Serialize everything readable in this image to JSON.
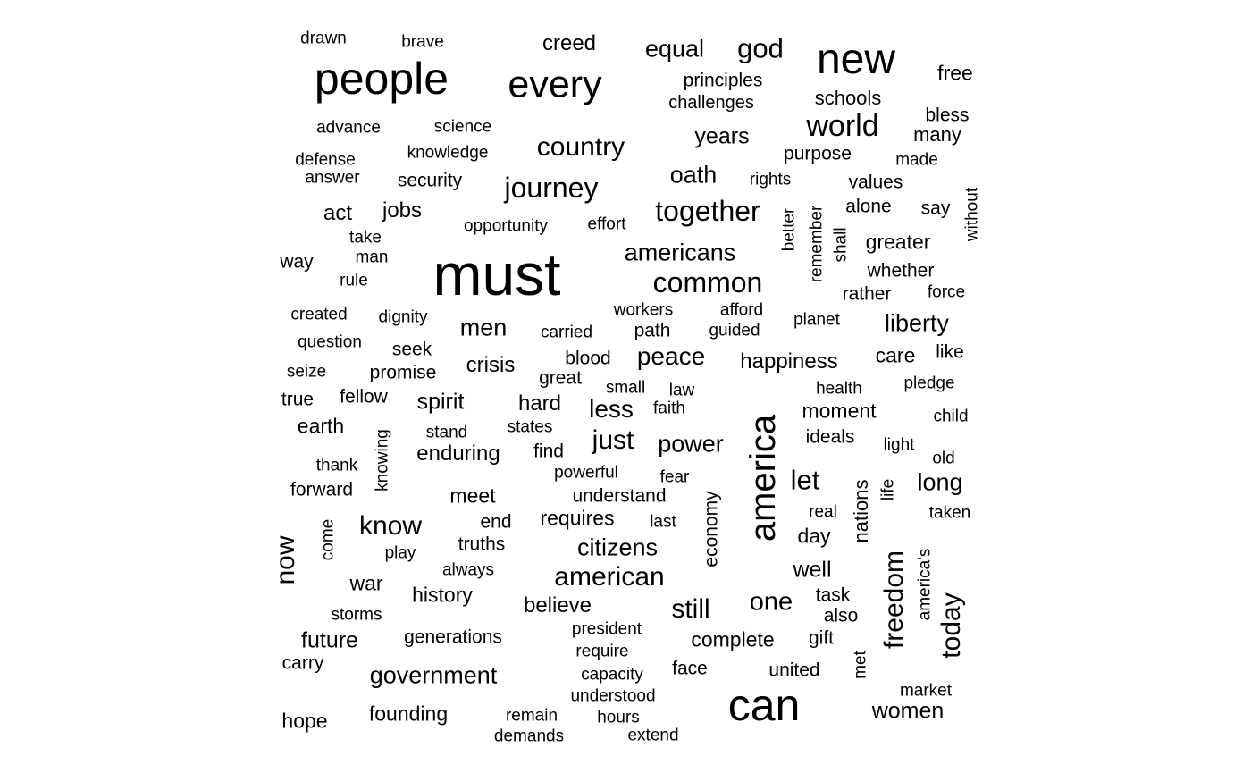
{
  "text_color": "#000000",
  "background": "#ffffff",
  "words": [
    "drawn",
    "brave",
    "creed",
    "equal",
    "god",
    "new",
    "people",
    "every",
    "free",
    "principles",
    "challenges",
    "schools",
    "advance",
    "science",
    "bless",
    "many",
    "world",
    "country",
    "years",
    "knowledge",
    "purpose",
    "defense",
    "made",
    "answer",
    "security",
    "journey",
    "oath",
    "rights",
    "values",
    "without",
    "act",
    "jobs",
    "together",
    "alone",
    "say",
    "remember",
    "better",
    "shall",
    "opportunity",
    "effort",
    "take",
    "greater",
    "americans",
    "must",
    "way",
    "man",
    "whether",
    "common",
    "rule",
    "rather",
    "force",
    "created",
    "dignity",
    "workers",
    "afford",
    "planet",
    "liberty",
    "carried",
    "men",
    "path",
    "guided",
    "question",
    "seek",
    "blood",
    "peace",
    "happiness",
    "care",
    "like",
    "seize",
    "promise",
    "crisis",
    "great",
    "small",
    "law",
    "health",
    "pledge",
    "true",
    "fellow",
    "spirit",
    "hard",
    "less",
    "faith",
    "moment",
    "child",
    "earth",
    "stand",
    "states",
    "just",
    "america",
    "power",
    "ideals",
    "light",
    "knowing",
    "enduring",
    "find",
    "old",
    "thank",
    "powerful",
    "fear",
    "let",
    "long",
    "forward",
    "meet",
    "understand",
    "life",
    "nations",
    "real",
    "taken",
    "economy",
    "end",
    "last",
    "requires",
    "know",
    "day",
    "come",
    "now",
    "truths",
    "citizens",
    "play",
    "always",
    "america's",
    "well",
    "american",
    "war",
    "task",
    "history",
    "believe",
    "still",
    "one",
    "today",
    "storms",
    "also",
    "freedom",
    "president",
    "future",
    "generations",
    "gift",
    "complete",
    "require",
    "met",
    "carry",
    "capacity",
    "face",
    "united",
    "government",
    "market",
    "understood",
    "can",
    "women",
    "hope",
    "founding",
    "remain",
    "hours",
    "demands",
    "extend"
  ]
}
